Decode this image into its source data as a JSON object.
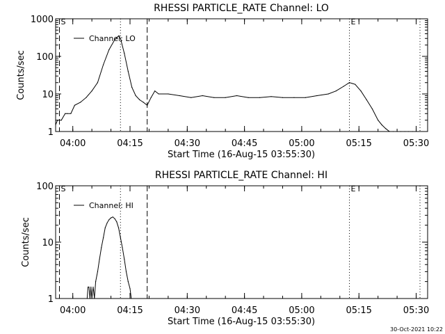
{
  "chart_data": [
    {
      "type": "line",
      "title": "RHESSI PARTICLE_RATE Channel: LO",
      "xlabel": "Start Time (16-Aug-15 03:55:30)",
      "ylabel": "Counts/sec",
      "yscale": "log",
      "xlim": [
        "03:55:30",
        "05:33:00"
      ],
      "ylim": [
        1,
        1000
      ],
      "xticks": [
        "04:00",
        "04:15",
        "04:30",
        "04:45",
        "05:00",
        "05:15",
        "05:30"
      ],
      "yticks": [
        "1",
        "10",
        "100",
        "1000"
      ],
      "grid": false,
      "legend": {
        "position": "top-left",
        "entries": [
          "Channel: LO"
        ]
      },
      "markers": [
        {
          "label": "S",
          "time": "03:56:30",
          "style": "dashed"
        },
        {
          "label": "",
          "time": "04:12:30",
          "style": "dotted"
        },
        {
          "label": "",
          "time": "04:19:30",
          "style": "dashed"
        },
        {
          "label": "E",
          "time": "05:12:30",
          "style": "dotted"
        },
        {
          "label": "",
          "time": "05:31:00",
          "style": "dotted"
        }
      ],
      "series": [
        {
          "name": "Channel: LO",
          "x": [
            "03:55:30",
            "03:56:00",
            "03:57:00",
            "03:58:00",
            "03:58:30",
            "03:59:30",
            "04:00:30",
            "04:02:00",
            "04:03:30",
            "04:05:00",
            "04:06:30",
            "04:08:00",
            "04:09:30",
            "04:11:00",
            "04:12:00",
            "04:12:30",
            "04:13:30",
            "04:14:30",
            "04:15:30",
            "04:16:30",
            "04:17:30",
            "04:18:30",
            "04:19:30",
            "04:20:30",
            "04:21:30",
            "04:22:30",
            "04:25:00",
            "04:28:00",
            "04:31:00",
            "04:34:00",
            "04:37:00",
            "04:40:00",
            "04:43:00",
            "04:46:00",
            "04:49:00",
            "04:52:00",
            "04:55:00",
            "04:58:00",
            "05:01:00",
            "05:04:00",
            "05:07:00",
            "05:09:00",
            "05:11:00",
            "05:12:30",
            "05:14:00",
            "05:15:30",
            "05:17:00",
            "05:18:30",
            "05:20:00",
            "05:21:00",
            "05:22:00",
            "05:23:00",
            "05:24:00",
            "05:25:00",
            "05:26:00",
            "05:27:00",
            "05:28:00",
            "05:29:00"
          ],
          "values": [
            1.5,
            2,
            2,
            3,
            3,
            3,
            5,
            6,
            8,
            12,
            20,
            60,
            150,
            280,
            350,
            300,
            120,
            40,
            15,
            9,
            7,
            6,
            5,
            8,
            12,
            10,
            10,
            9,
            8,
            9,
            8,
            8,
            9,
            8,
            8,
            8.5,
            8,
            8,
            8,
            9,
            10,
            12,
            16,
            20,
            18,
            12,
            7,
            4,
            2,
            1.5,
            1.2,
            1,
            1,
            1,
            1,
            1,
            1,
            1
          ]
        }
      ]
    },
    {
      "type": "line",
      "title": "RHESSI PARTICLE_RATE Channel: HI",
      "xlabel": "Start Time (16-Aug-15 03:55:30)",
      "ylabel": "Counts/sec",
      "yscale": "log",
      "xlim": [
        "03:55:30",
        "05:33:00"
      ],
      "ylim": [
        1,
        100
      ],
      "xticks": [
        "04:00",
        "04:15",
        "04:30",
        "04:45",
        "05:00",
        "05:15",
        "05:30"
      ],
      "yticks": [
        "1",
        "10",
        "100"
      ],
      "grid": false,
      "legend": {
        "position": "top-left",
        "entries": [
          "Channel: HI"
        ]
      },
      "markers": [
        {
          "label": "S",
          "time": "03:56:30",
          "style": "dashed"
        },
        {
          "label": "",
          "time": "04:12:30",
          "style": "dotted"
        },
        {
          "label": "",
          "time": "04:19:30",
          "style": "dashed"
        },
        {
          "label": "E",
          "time": "05:12:30",
          "style": "dotted"
        },
        {
          "label": "",
          "time": "05:31:00",
          "style": "dotted"
        }
      ],
      "series": [
        {
          "name": "Channel: HI",
          "x": [
            "04:03:45",
            "04:04:00",
            "04:04:15",
            "04:04:30",
            "04:04:45",
            "04:05:00",
            "04:05:20",
            "04:05:40",
            "04:06:00",
            "04:06:30",
            "04:07:00",
            "04:07:30",
            "04:08:00",
            "04:08:30",
            "04:09:00",
            "04:09:30",
            "04:10:00",
            "04:10:30",
            "04:11:00",
            "04:11:30",
            "04:12:00",
            "04:12:30",
            "04:13:00",
            "04:13:30",
            "04:14:00",
            "04:14:30",
            "04:15:00",
            "04:15:20"
          ],
          "values": [
            1,
            1.6,
            1.6,
            1,
            1.6,
            1,
            1.6,
            1,
            2,
            3,
            5,
            8,
            12,
            18,
            22,
            25,
            27,
            28,
            26,
            23,
            18,
            12,
            8,
            5,
            3,
            2,
            1.5,
            1
          ]
        }
      ]
    }
  ],
  "footer": {
    "timestamp": "30-Oct-2021 10:22"
  }
}
